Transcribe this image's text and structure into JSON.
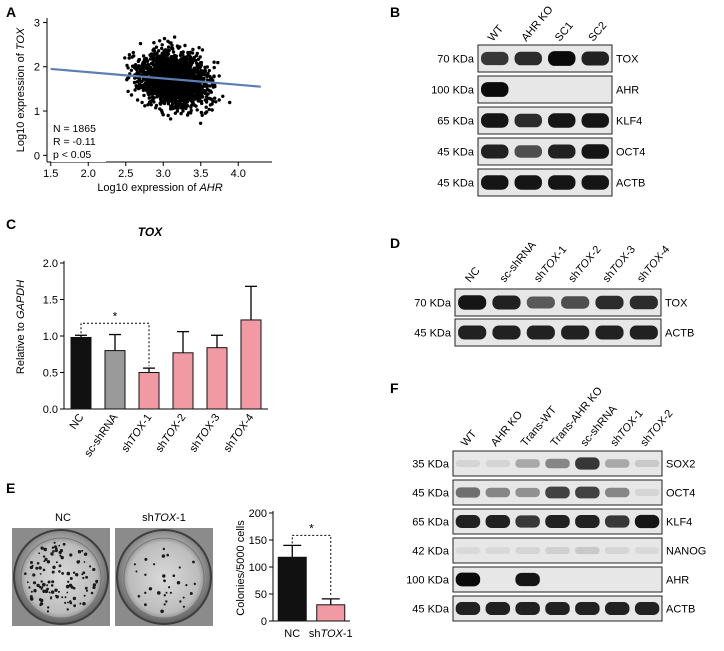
{
  "panels": {
    "A": {
      "letter": "A",
      "xlabel_prefix": "Log10 expression of ",
      "xlabel_gene": "AHR",
      "ylabel_prefix": "Log10 expression of ",
      "ylabel_gene": "TOX",
      "stats": [
        "N = 1865",
        "R = -0.11",
        "p < 0.05"
      ],
      "xticks": [
        "1.5",
        "2.0",
        "2.5",
        "3.0",
        "3.5",
        "4.0"
      ],
      "yticks": [
        "0",
        "1",
        "2",
        "3"
      ]
    },
    "B": {
      "letter": "B",
      "lanes": [
        "WT",
        "AHR KO",
        "SC1",
        "SC2"
      ],
      "rows": [
        {
          "mw": "70 KDa",
          "protein": "TOX"
        },
        {
          "mw": "100 KDa",
          "protein": "AHR"
        },
        {
          "mw": "65 KDa",
          "protein": "KLF4"
        },
        {
          "mw": "45 KDa",
          "protein": "OCT4"
        },
        {
          "mw": "45 KDa",
          "protein": "ACTB"
        }
      ]
    },
    "C": {
      "letter": "C",
      "title": "TOX",
      "ylabel_prefix": "Relative to ",
      "ylabel_gene": "GAPDH",
      "yticks": [
        "0.0",
        "0.5",
        "1.0",
        "1.5",
        "2.0"
      ],
      "categories": [
        "NC",
        "sc-shRNA",
        "shTOX-1",
        "shTOX-2",
        "shTOX-3",
        "shTOX-4"
      ],
      "significance": "*"
    },
    "D": {
      "letter": "D",
      "lanes": [
        "NC",
        "sc-shRNA",
        "shTOX-1",
        "shTOX-2",
        "shTOX-3",
        "shTOX-4"
      ],
      "rows": [
        {
          "mw": "70 KDa",
          "protein": "TOX"
        },
        {
          "mw": "45 KDa",
          "protein": "ACTB"
        }
      ]
    },
    "E": {
      "letter": "E",
      "dish_labels": [
        "NC",
        "shTOX-1"
      ],
      "ylabel": "Colonies/5000 cells",
      "yticks": [
        "0",
        "50",
        "100",
        "150",
        "200"
      ],
      "categories": [
        "NC",
        "shTOX-1"
      ],
      "significance": "*"
    },
    "F": {
      "letter": "F",
      "lanes": [
        "WT",
        "AHR KO",
        "Trans-WT",
        "Trans-AHR KO",
        "sc-shRNA",
        "shTOX-1",
        "shTOX-2"
      ],
      "rows": [
        {
          "mw": "35 KDa",
          "protein": "SOX2"
        },
        {
          "mw": "45 KDa",
          "protein": "OCT4"
        },
        {
          "mw": "65 KDa",
          "protein": "KLF4"
        },
        {
          "mw": "42 KDa",
          "protein": "NANOG"
        },
        {
          "mw": "100 KDa",
          "protein": "AHR"
        },
        {
          "mw": "45 KDa",
          "protein": "ACTB"
        }
      ]
    }
  },
  "chart_data": [
    {
      "panel": "A",
      "type": "scatter",
      "xlabel": "Log10 expression of AHR",
      "ylabel": "Log10 expression of TOX",
      "xlim": [
        1.45,
        4.45
      ],
      "ylim": [
        -0.15,
        3.1
      ],
      "n_points": 1865,
      "r": -0.11,
      "p": "< 0.05",
      "regression_line": {
        "x": [
          1.5,
          4.3
        ],
        "y": [
          1.95,
          1.55
        ]
      },
      "line_color": "#5b7fb5",
      "point_color": "#000000"
    },
    {
      "panel": "C",
      "type": "bar",
      "title": "TOX",
      "ylabel": "Relative to GAPDH",
      "ylim": [
        0,
        2.0
      ],
      "categories": [
        "NC",
        "sc-shRNA",
        "shTOX-1",
        "shTOX-2",
        "shTOX-3",
        "shTOX-4"
      ],
      "values": [
        0.98,
        0.8,
        0.5,
        0.77,
        0.84,
        1.22
      ],
      "errors": [
        0.03,
        0.22,
        0.06,
        0.29,
        0.17,
        0.46
      ],
      "colors": [
        "#111111",
        "#9a9a9a",
        "#f19aa4",
        "#f19aa4",
        "#f19aa4",
        "#f19aa4"
      ],
      "significance": {
        "pair": [
          "NC",
          "shTOX-1"
        ],
        "label": "*"
      }
    },
    {
      "panel": "E",
      "type": "bar",
      "ylabel": "Colonies/5000 cells",
      "ylim": [
        0,
        200
      ],
      "categories": [
        "NC",
        "shTOX-1"
      ],
      "values": [
        118,
        30
      ],
      "errors": [
        22,
        11
      ],
      "colors": [
        "#111111",
        "#f19aa4"
      ],
      "significance": {
        "pair": [
          "NC",
          "shTOX-1"
        ],
        "label": "*"
      }
    }
  ],
  "blots": {
    "B": [
      [
        0.8,
        0.85,
        1.0,
        0.9
      ],
      [
        1.0,
        0.05,
        0.05,
        0.05
      ],
      [
        0.95,
        0.85,
        0.95,
        0.95
      ],
      [
        0.9,
        0.7,
        0.9,
        0.95
      ],
      [
        0.95,
        0.95,
        0.95,
        0.95
      ]
    ],
    "D": [
      [
        0.95,
        0.9,
        0.65,
        0.7,
        0.85,
        0.85
      ],
      [
        0.9,
        0.9,
        0.9,
        0.9,
        0.9,
        0.9
      ]
    ],
    "F": [
      [
        0.1,
        0.1,
        0.3,
        0.45,
        0.8,
        0.3,
        0.15
      ],
      [
        0.55,
        0.45,
        0.4,
        0.75,
        0.75,
        0.45,
        0.1
      ],
      [
        0.9,
        0.9,
        0.8,
        0.9,
        0.9,
        0.8,
        0.95
      ],
      [
        0.08,
        0.08,
        0.1,
        0.12,
        0.15,
        0.1,
        0.08
      ],
      [
        1.0,
        0.03,
        0.95,
        0.03,
        0.03,
        0.03,
        0.03
      ],
      [
        0.9,
        0.9,
        0.9,
        0.9,
        0.9,
        0.9,
        0.9
      ]
    ]
  }
}
